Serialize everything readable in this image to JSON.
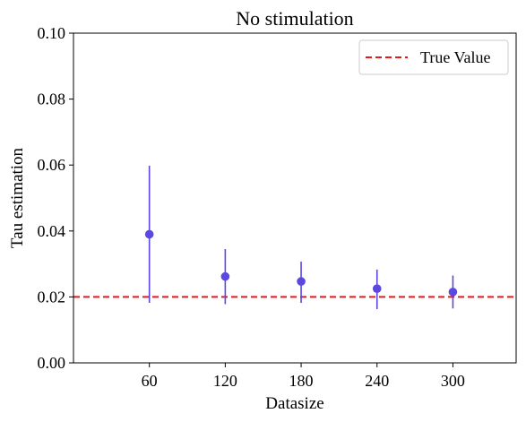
{
  "chart_data": {
    "type": "scatter",
    "title": "No stimulation",
    "xlabel": "Datasize",
    "ylabel": "Tau estimation",
    "xlim": [
      0,
      350
    ],
    "ylim": [
      0,
      0.1
    ],
    "x_ticks": [
      60,
      120,
      180,
      240,
      300
    ],
    "x_tick_labels": [
      "60",
      "120",
      "180",
      "240",
      "300"
    ],
    "y_ticks": [
      0,
      0.02,
      0.04,
      0.06,
      0.08,
      0.1
    ],
    "y_tick_labels": [
      "0.00",
      "0.02",
      "0.04",
      "0.06",
      "0.08",
      "0.10"
    ],
    "grid": false,
    "legend_position": "top-right",
    "colors": {
      "points": "#5b48e0",
      "reference_line": "#e31a1c"
    },
    "series": [
      {
        "x": [
          60,
          120,
          180,
          240,
          300
        ],
        "y": [
          0.039,
          0.0262,
          0.0247,
          0.0225,
          0.0215
        ],
        "err_low": [
          0.0182,
          0.0178,
          0.0182,
          0.0163,
          0.0165
        ],
        "err_high": [
          0.0598,
          0.0345,
          0.0307,
          0.0283,
          0.0265
        ]
      }
    ],
    "reference_line": {
      "name": "True Value",
      "y": 0.02,
      "style": "dashed"
    }
  }
}
